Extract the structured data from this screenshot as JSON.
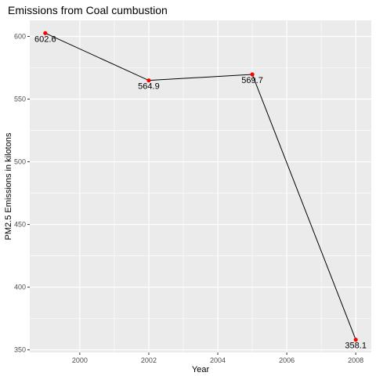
{
  "chart_data": {
    "type": "line",
    "title": "Emissions from Coal cumbustion",
    "xlabel": "Year",
    "ylabel": "PM2.5 Emissions in kilotons",
    "x": [
      1999,
      2002,
      2005,
      2008
    ],
    "series": [
      {
        "values": [
          602.6,
          564.9,
          569.7,
          358.1
        ]
      }
    ],
    "point_labels": [
      "602.6",
      "564.9",
      "569.7",
      "358.1"
    ],
    "xlim": [
      1998.55,
      2008.45
    ],
    "ylim": [
      347.9,
      612.8
    ],
    "x_ticks": [
      2000,
      2002,
      2004,
      2006,
      2008
    ],
    "x_tick_labels": [
      "2000",
      "2002",
      "2004",
      "2006",
      "2008"
    ],
    "y_ticks": [
      350,
      400,
      450,
      500,
      550,
      600
    ],
    "y_tick_labels": [
      "350",
      "400",
      "450",
      "500",
      "550",
      "600"
    ],
    "grid": true,
    "colors": {
      "panel_background": "#ebebeb",
      "grid_major": "#ffffff",
      "line": "#000000",
      "point": "#ff0000"
    }
  }
}
